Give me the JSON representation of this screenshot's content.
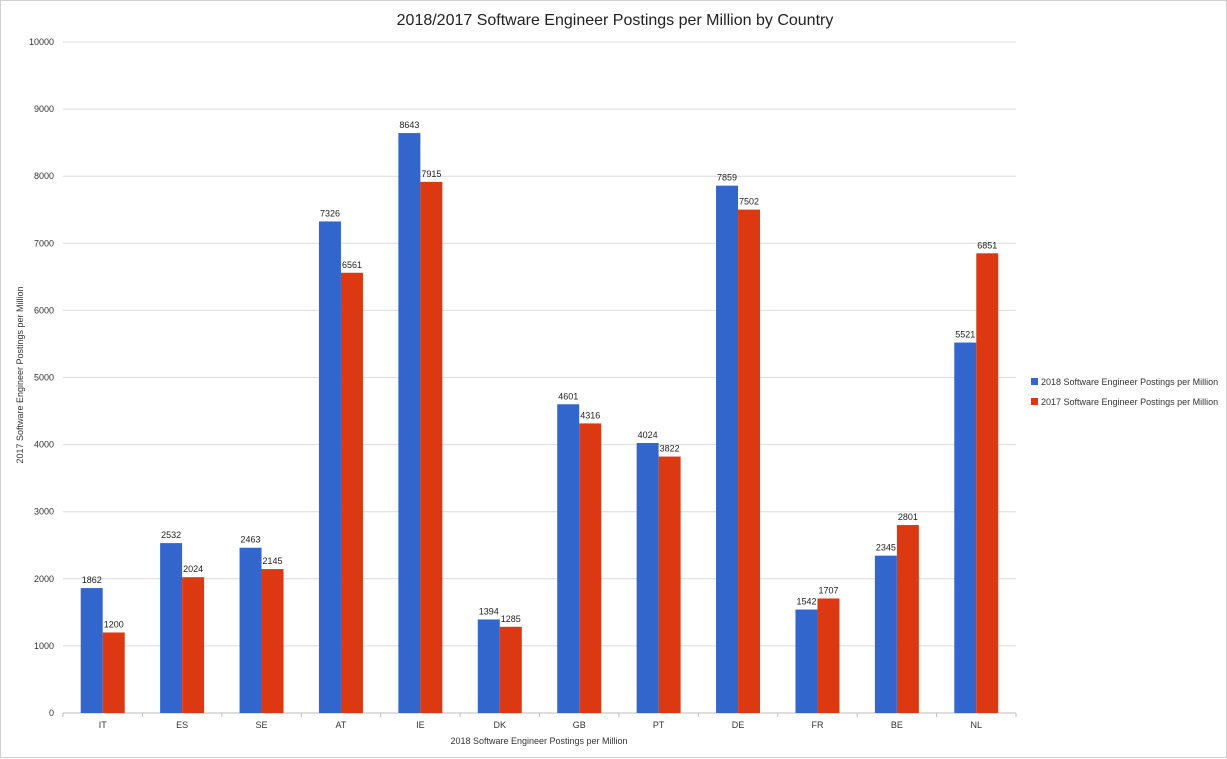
{
  "chart_data": {
    "type": "bar",
    "title": "2018/2017 Software Engineer Postings per Million by Country",
    "xlabel": "2018 Software Engineer Postings per Million",
    "ylabel": "2017 Software Engineer Postings per Million",
    "ylim": [
      0,
      10000
    ],
    "yticks": [
      0,
      1000,
      2000,
      3000,
      4000,
      5000,
      6000,
      7000,
      8000,
      9000,
      10000
    ],
    "grid": true,
    "legend_position": "right",
    "categories": [
      "IT",
      "ES",
      "SE",
      "AT",
      "IE",
      "DK",
      "GB",
      "PT",
      "DE",
      "FR",
      "BE",
      "NL"
    ],
    "series": [
      {
        "name": "2018 Software Engineer Postings per Million",
        "color": "#3366cc",
        "values": [
          1862,
          2532,
          2463,
          7326,
          8643,
          1394,
          4601,
          4024,
          7859,
          1542,
          2345,
          5521
        ]
      },
      {
        "name": "2017 Software Engineer Postings per Million",
        "color": "#dc3912",
        "values": [
          1200,
          2024,
          2145,
          6561,
          7915,
          1285,
          4316,
          3822,
          7502,
          1707,
          2801,
          6851
        ]
      }
    ]
  }
}
